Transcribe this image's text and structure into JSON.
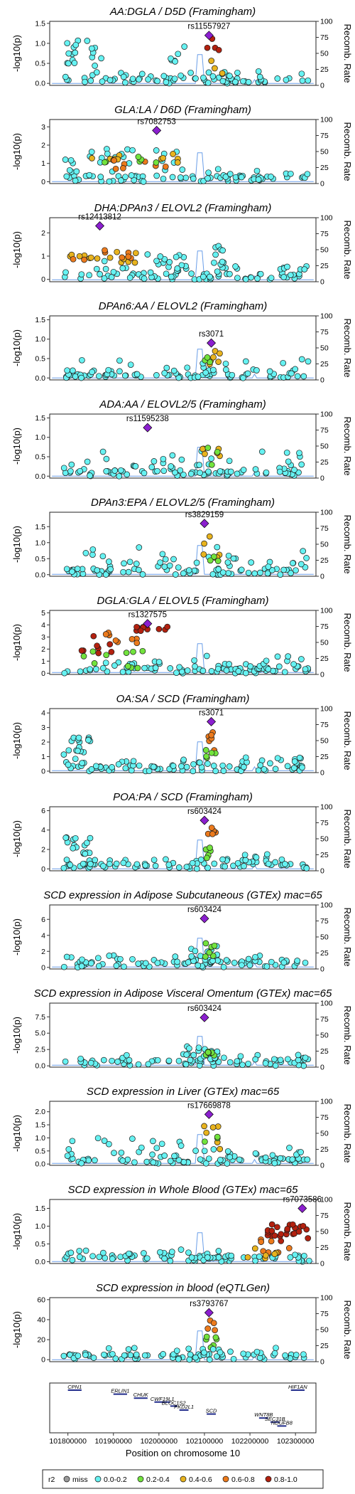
{
  "chart_data": {
    "type": "scatter",
    "figure": "locuszoom",
    "left_axis_label": "-log10(p)",
    "right_axis_label": "Recomb. Rate",
    "right_axis_ticks": [
      0,
      25,
      50,
      75,
      100
    ],
    "x_axis_label": "Position on chromosome 10",
    "x_ticks": [
      101800000,
      101900000,
      102000000,
      102100000,
      102200000,
      102300000
    ],
    "xlim": [
      101760000,
      102345000
    ],
    "legend": {
      "title": "r2",
      "entries": [
        {
          "label": "miss",
          "color": "#9a9a9a"
        },
        {
          "label": "0.0-0.2",
          "color": "#66f2f2"
        },
        {
          "label": "0.2-0.4",
          "color": "#72e33d"
        },
        {
          "label": "0.4-0.6",
          "color": "#e8b31e"
        },
        {
          "label": "0.6-0.8",
          "color": "#ec7a1c"
        },
        {
          "label": "0.8-1.0",
          "color": "#b3210f"
        }
      ]
    },
    "colors": {
      "lead_snp": "#8b1fcf",
      "recombination": "#6a9ee8",
      "point_edge": "#1a1a1a"
    },
    "panels": [
      {
        "title": "AA:DGLA / D5D (Framingham)",
        "ylim": [
          -0.05,
          1.55
        ],
        "yticks": [
          0.0,
          0.5,
          1.0,
          1.5
        ],
        "yfmt": 1,
        "lead": {
          "snp": "rs11557927",
          "x": 102110000,
          "y": 1.2
        },
        "peak": 1.2,
        "clusters": "left_high"
      },
      {
        "title": "GLA:LA / D6D (Framingham)",
        "ylim": [
          -0.1,
          3.4
        ],
        "yticks": [
          0,
          1,
          2,
          3
        ],
        "yfmt": 0,
        "lead": {
          "snp": "rs7082753",
          "x": 101995000,
          "y": 2.8
        },
        "peak": 2.8,
        "clusters": "orange_band"
      },
      {
        "title": "DHA:DPAn3 / ELOVL2 (Framingham)",
        "ylim": [
          -0.1,
          2.65
        ],
        "yticks": [
          0,
          1,
          2
        ],
        "yfmt": 0,
        "lead": {
          "snp": "rs12413812",
          "x": 101870000,
          "y": 2.3
        },
        "peak": 2.3,
        "clusters": "left_orange"
      },
      {
        "title": "DPAn6:AA / ELOVL2 (Framingham)",
        "ylim": [
          -0.05,
          1.6
        ],
        "yticks": [
          0.0,
          0.5,
          1.0,
          1.5
        ],
        "yfmt": 1,
        "lead": {
          "snp": "rs3071",
          "x": 102115000,
          "y": 0.9
        },
        "peak": 0.9,
        "clusters": "mid"
      },
      {
        "title": "ADA:AA / ELOVL2/5 (Framingham)",
        "ylim": [
          -0.05,
          1.6
        ],
        "yticks": [
          0.0,
          0.5,
          1.0,
          1.5
        ],
        "yfmt": 1,
        "lead": {
          "snp": "rs11595238",
          "x": 101975000,
          "y": 1.25
        },
        "peak": 1.25,
        "clusters": "mid"
      },
      {
        "title": "DPAn3:EPA / ELOVL2/5 (Framingham)",
        "ylim": [
          -0.05,
          1.95
        ],
        "yticks": [
          0.0,
          0.5,
          1.0,
          1.5
        ],
        "yfmt": 1,
        "lead": {
          "snp": "rs3829159",
          "x": 102100000,
          "y": 1.6
        },
        "peak": 1.6,
        "clusters": "mid"
      },
      {
        "title": "DGLA:GLA / ELOVL5 (Framingham)",
        "ylim": [
          -0.1,
          5.2
        ],
        "yticks": [
          0,
          1,
          2,
          3,
          4,
          5
        ],
        "yfmt": 0,
        "lead": {
          "snp": "rs1327575",
          "x": 101975000,
          "y": 4.1
        },
        "peak": 4.1,
        "clusters": "red_band"
      },
      {
        "title": "OA:SA / SCD (Framingham)",
        "ylim": [
          -0.1,
          4.3
        ],
        "yticks": [
          0,
          1,
          2,
          3,
          4
        ],
        "yfmt": 0,
        "lead": {
          "snp": "rs3071",
          "x": 102115000,
          "y": 3.4
        },
        "peak": 3.4,
        "clusters": "scd"
      },
      {
        "title": "POA:PA / SCD (Framingham)",
        "ylim": [
          -0.2,
          6.4
        ],
        "yticks": [
          0,
          2,
          4,
          6
        ],
        "yfmt": 0,
        "lead": {
          "snp": "rs603424",
          "x": 102100000,
          "y": 5.0
        },
        "peak": 5.0,
        "clusters": "scd"
      },
      {
        "title": "SCD expression in Adipose Subcutaneous (GTEx) mac=65",
        "ylim": [
          -0.2,
          7.8
        ],
        "yticks": [
          0,
          2,
          4,
          6
        ],
        "yfmt": 0,
        "lead": {
          "snp": "rs603424",
          "x": 102100000,
          "y": 6.1
        },
        "peak": 6.1,
        "clusters": "gtex"
      },
      {
        "title": "SCD expression in Adipose Visceral Omentum (GTEx) mac=65",
        "ylim": [
          -0.2,
          9.6
        ],
        "yticks": [
          0.0,
          2.5,
          5.0,
          7.5
        ],
        "yfmt": 1,
        "lead": {
          "snp": "rs603424",
          "x": 102100000,
          "y": 7.4
        },
        "peak": 7.4,
        "clusters": "gtex"
      },
      {
        "title": "SCD expression in Liver (GTEx) mac=65",
        "ylim": [
          -0.05,
          2.4
        ],
        "yticks": [
          0.0,
          0.5,
          1.0,
          1.5,
          2.0
        ],
        "yfmt": 1,
        "lead": {
          "snp": "rs17669878",
          "x": 102110000,
          "y": 1.9
        },
        "peak": 1.9,
        "clusters": "mid"
      },
      {
        "title": "SCD expression in Whole Blood (GTEx) mac=65",
        "ylim": [
          -0.05,
          1.75
        ],
        "yticks": [
          0.0,
          0.5,
          1.0,
          1.5
        ],
        "yfmt": 1,
        "lead": {
          "snp": "rs7073586",
          "x": 102315000,
          "y": 1.5
        },
        "peak": 1.5,
        "clusters": "right_red"
      },
      {
        "title": "SCD expression in blood (eQTLGen)",
        "ylim": [
          -2,
          62
        ],
        "yticks": [
          0,
          20,
          40,
          60
        ],
        "yfmt": 0,
        "lead": {
          "snp": "rs3793767",
          "x": 102110000,
          "y": 47
        },
        "peak": 47,
        "clusters": "eqtlgen"
      }
    ],
    "genes": [
      {
        "name": "CPN1",
        "start": 101800000,
        "end": 101830000,
        "row": 0
      },
      {
        "name": "ERLIN1",
        "start": 101900000,
        "end": 101930000,
        "row": 1
      },
      {
        "name": "CHUK",
        "start": 101945000,
        "end": 101975000,
        "row": 2
      },
      {
        "name": "CWF19L1",
        "start": 101990000,
        "end": 102025000,
        "row": 3
      },
      {
        "name": "BLOC1S2",
        "start": 102025000,
        "end": 102040000,
        "row": 4
      },
      {
        "name": "PKD2L1",
        "start": 102045000,
        "end": 102065000,
        "row": 5
      },
      {
        "name": "SCD",
        "start": 102105000,
        "end": 102125000,
        "row": 6
      },
      {
        "name": "WNT8B",
        "start": 102220000,
        "end": 102240000,
        "row": 7
      },
      {
        "name": "SEC31B",
        "start": 102245000,
        "end": 102265000,
        "row": 8
      },
      {
        "name": "NDUFB8",
        "start": 102260000,
        "end": 102280000,
        "row": 9
      },
      {
        "name": "HIF1AN",
        "start": 102290000,
        "end": 102320000,
        "row": 0
      }
    ]
  }
}
